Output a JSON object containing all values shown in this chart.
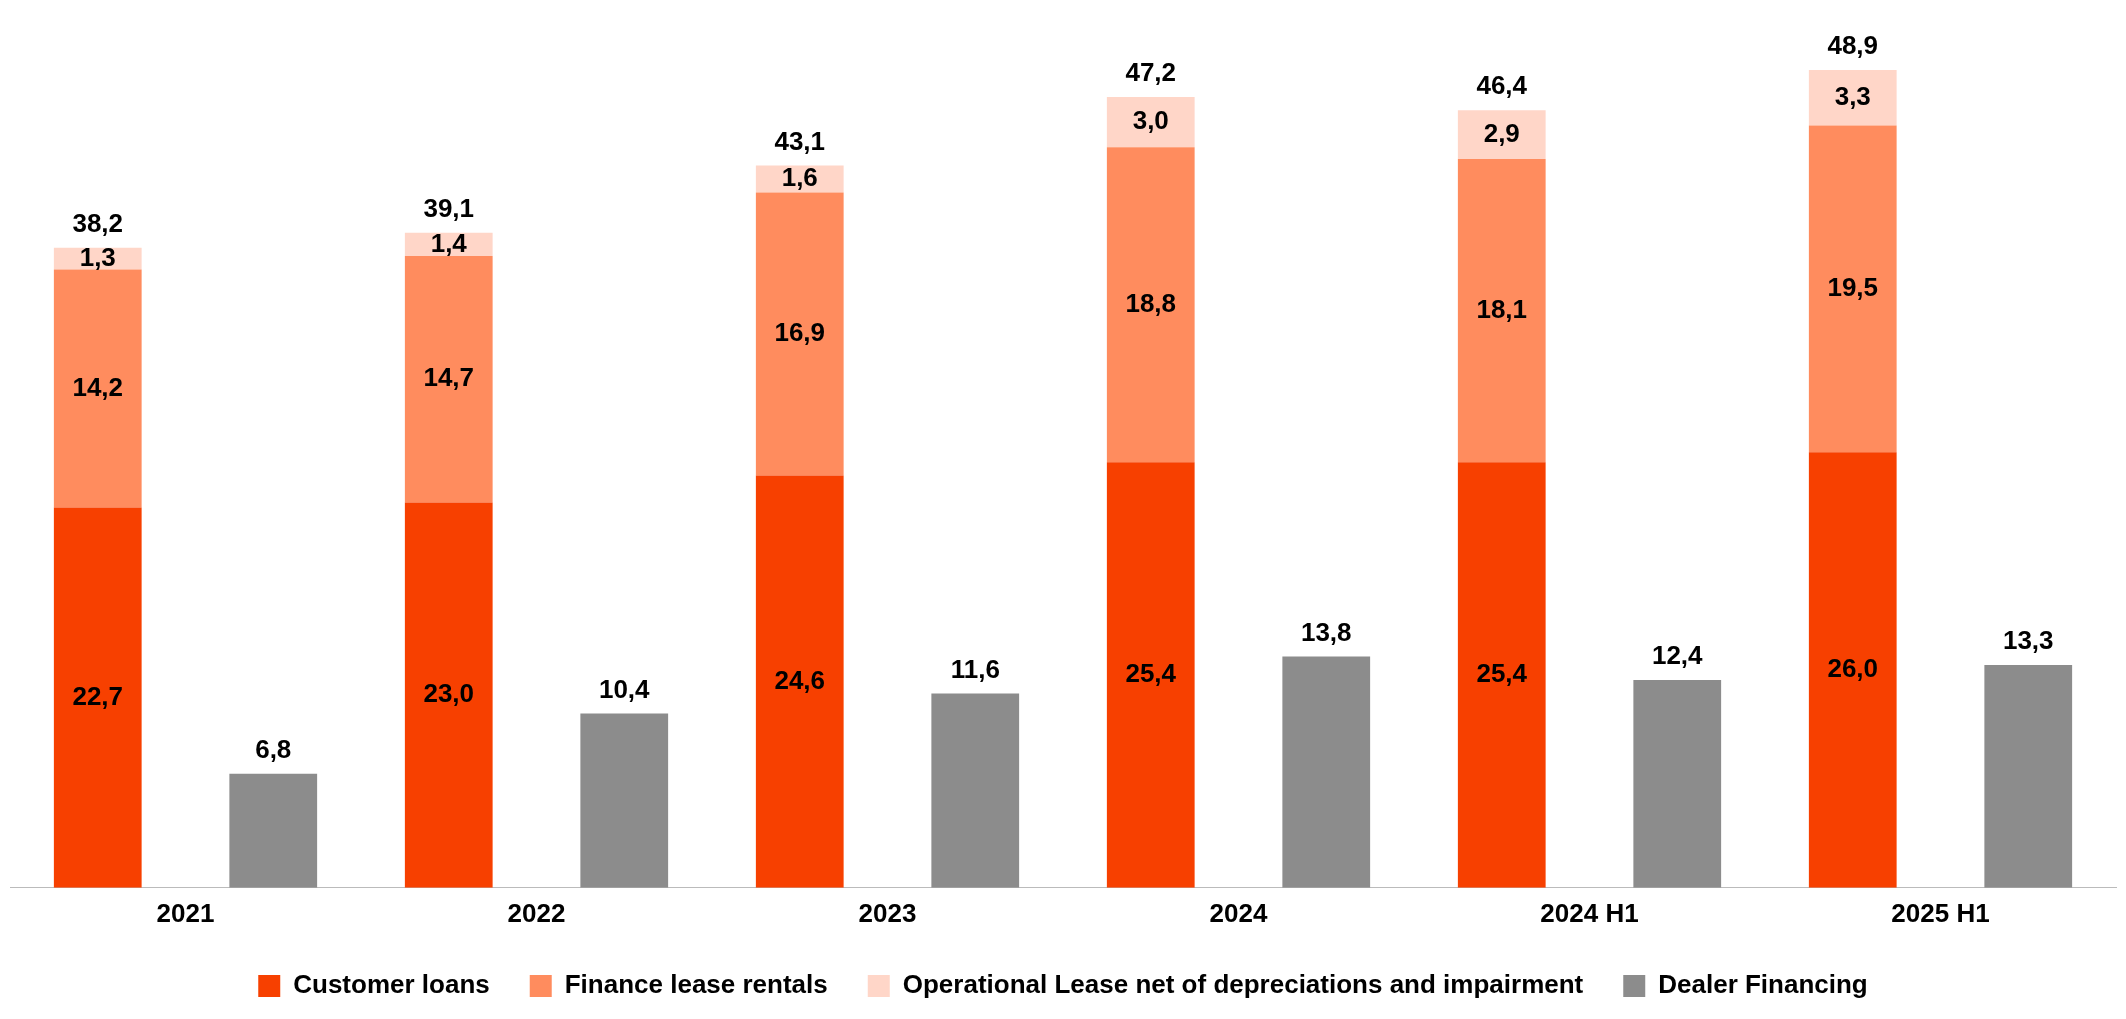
{
  "chart_data": {
    "type": "bar",
    "stacked": true,
    "categories": [
      "2021",
      null,
      "2022",
      null,
      "2023",
      null,
      "2024",
      null,
      "2024 H1",
      null,
      "2025 H1",
      null
    ],
    "series": [
      {
        "name": "Customer loans",
        "color": "#f74000",
        "values": [
          22.7,
          null,
          23.0,
          null,
          24.6,
          null,
          25.4,
          null,
          25.4,
          null,
          26.0,
          null
        ],
        "value_labels": [
          "22,7",
          null,
          "23,0",
          null,
          "24,6",
          null,
          "25,4",
          null,
          "25,4",
          null,
          "26,0",
          null
        ]
      },
      {
        "name": "Finance lease rentals",
        "color": "#ff8c5e",
        "values": [
          14.2,
          null,
          14.7,
          null,
          16.9,
          null,
          18.8,
          null,
          18.1,
          null,
          19.5,
          null
        ],
        "value_labels": [
          "14,2",
          null,
          "14,7",
          null,
          "16,9",
          null,
          "18,8",
          null,
          "18,1",
          null,
          "19,5",
          null
        ]
      },
      {
        "name": "Operational Lease net of depreciations and impairment",
        "color": "#ffd6c8",
        "values": [
          1.3,
          null,
          1.4,
          null,
          1.6,
          null,
          3.0,
          null,
          2.9,
          null,
          3.3,
          null
        ],
        "value_labels": [
          "1,3",
          null,
          "1,4",
          null,
          "1,6",
          null,
          "3,0",
          null,
          "2,9",
          null,
          "3,3",
          null
        ]
      },
      {
        "name": "Dealer Financing",
        "color": "#8c8c8c",
        "values": [
          null,
          6.8,
          null,
          10.4,
          null,
          11.6,
          null,
          13.8,
          null,
          12.4,
          null,
          13.3
        ],
        "value_labels": [
          null,
          "6,8",
          null,
          "10,4",
          null,
          "11,6",
          null,
          "13,8",
          null,
          "12,4",
          null,
          "13,3"
        ]
      }
    ],
    "totals": [
      "38,2",
      null,
      "39,1",
      null,
      "43,1",
      null,
      "47,2",
      null,
      "46,4",
      null,
      "48,9",
      null
    ],
    "legend": "bottom",
    "grid": false
  }
}
